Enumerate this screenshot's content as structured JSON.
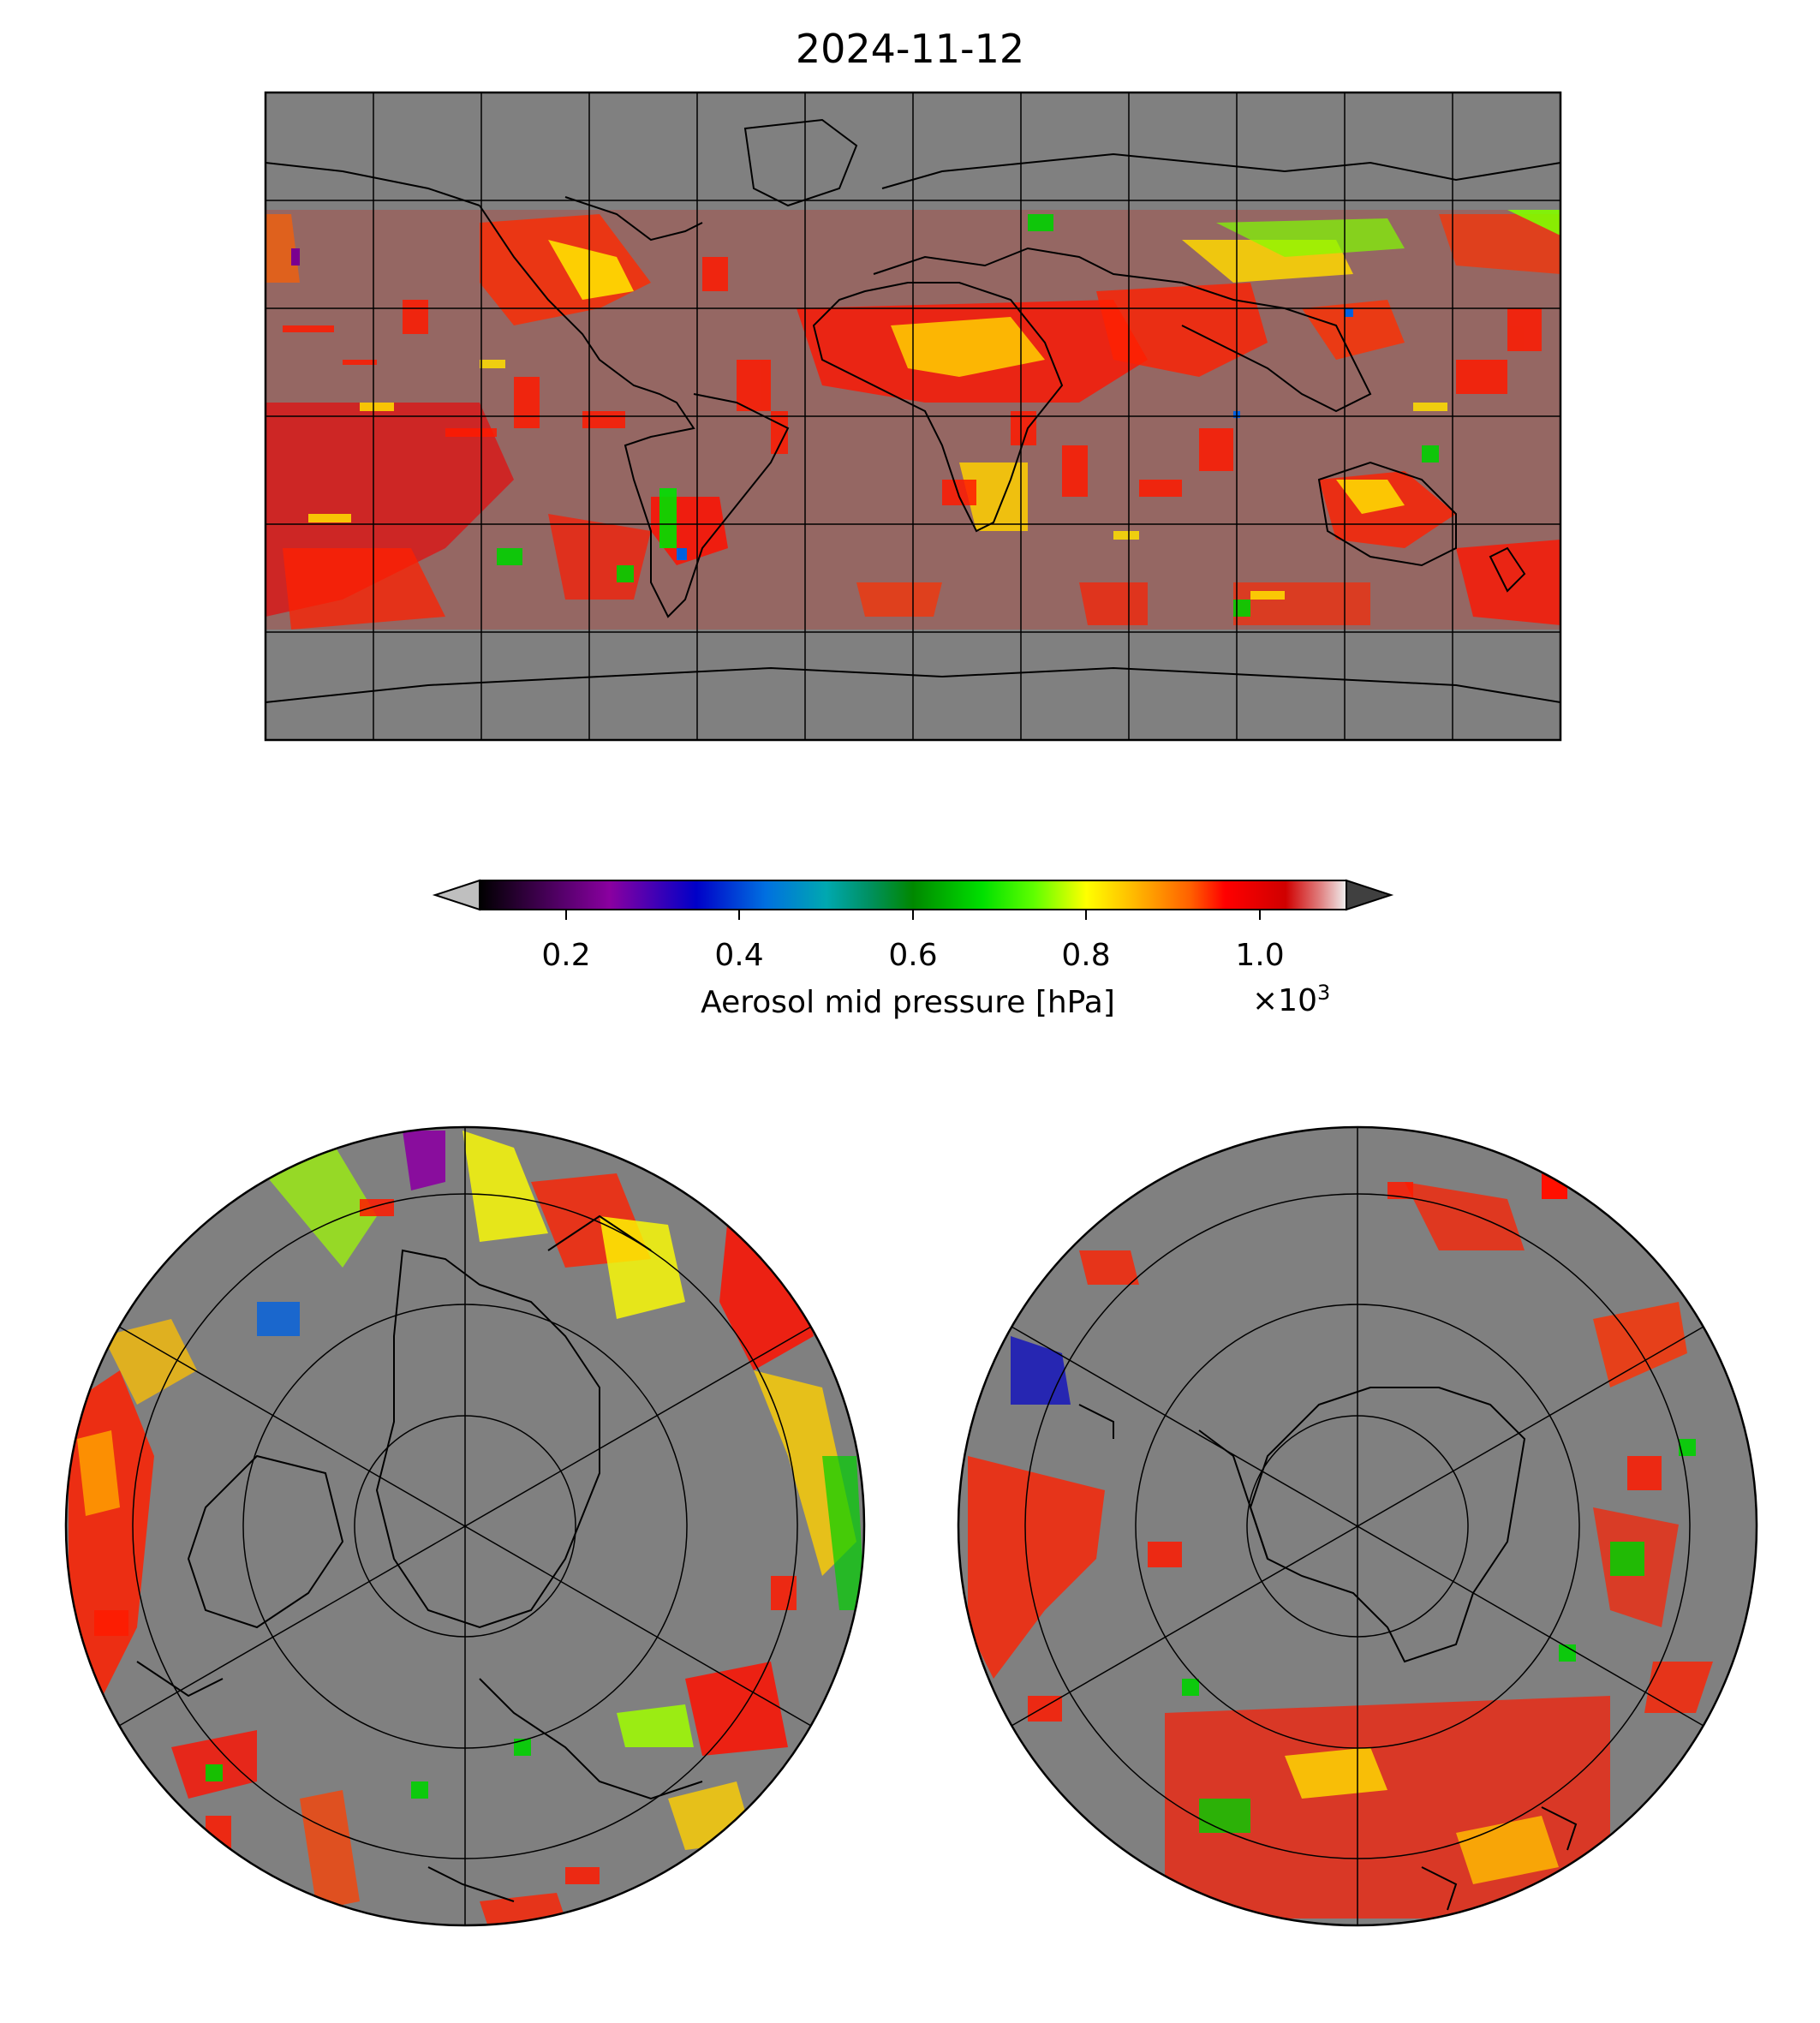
{
  "title": "2024-11-12",
  "colorbar": {
    "label": "Aerosol mid pressure [hPa]",
    "multiplier_base": "×10",
    "multiplier_exp": "3",
    "ticks": [
      "0.2",
      "0.4",
      "0.6",
      "0.8",
      "1.0"
    ],
    "range": [
      0.1,
      1.1
    ],
    "colormap": [
      "#000000",
      "#7a0090",
      "#8a00a0",
      "#0000c8",
      "#0060e0",
      "#00a0c0",
      "#009060",
      "#009000",
      "#00d000",
      "#00ff00",
      "#a0ff00",
      "#ffff00",
      "#ffc000",
      "#ff6000",
      "#ff0000",
      "#d00000",
      "#c80000",
      "#f0f0f0"
    ],
    "under_color": "#bfbfbf",
    "over_color": "#404040"
  },
  "panels": {
    "global": {
      "projection": "Plate Carree",
      "background": "#808080"
    },
    "north_polar": {
      "projection": "North Polar Stereographic",
      "background": "#808080"
    },
    "south_polar": {
      "projection": "South Polar Stereographic",
      "background": "#808080"
    }
  }
}
